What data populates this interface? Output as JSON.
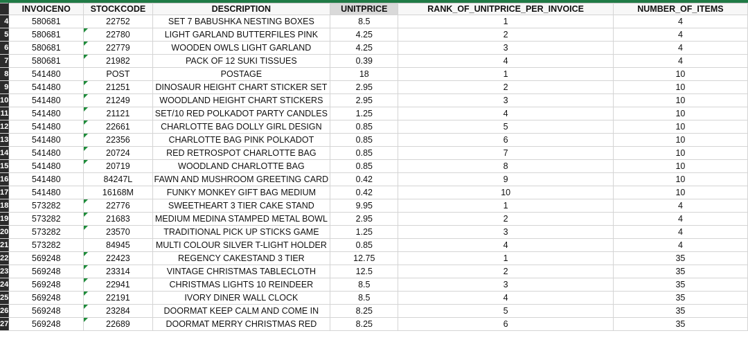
{
  "headers": [
    "INVOICENO",
    "STOCKCODE",
    "DESCRIPTION",
    "UNITPRICE",
    "RANK_OF_UNITPRICE_PER_INVOICE",
    "NUMBER_OF_ITEMS"
  ],
  "rows": [
    {
      "rownum": "4",
      "invoice": "580681",
      "stock": "22752",
      "desc": "SET 7 BABUSHKA NESTING BOXES",
      "price": "8.5",
      "rank": "1",
      "items": "4",
      "flag": false
    },
    {
      "rownum": "5",
      "invoice": "580681",
      "stock": "22780",
      "desc": "LIGHT GARLAND BUTTERFILES PINK",
      "price": "4.25",
      "rank": "2",
      "items": "4",
      "flag": true
    },
    {
      "rownum": "6",
      "invoice": "580681",
      "stock": "22779",
      "desc": "WOODEN OWLS LIGHT GARLAND",
      "price": "4.25",
      "rank": "3",
      "items": "4",
      "flag": true
    },
    {
      "rownum": "7",
      "invoice": "580681",
      "stock": "21982",
      "desc": "PACK OF 12 SUKI TISSUES",
      "price": "0.39",
      "rank": "4",
      "items": "4",
      "flag": true
    },
    {
      "rownum": "8",
      "invoice": "541480",
      "stock": "POST",
      "desc": "POSTAGE",
      "price": "18",
      "rank": "1",
      "items": "10",
      "flag": false
    },
    {
      "rownum": "9",
      "invoice": "541480",
      "stock": "21251",
      "desc": "DINOSAUR HEIGHT CHART STICKER SET",
      "price": "2.95",
      "rank": "2",
      "items": "10",
      "flag": true
    },
    {
      "rownum": "10",
      "invoice": "541480",
      "stock": "21249",
      "desc": "WOODLAND HEIGHT CHART STICKERS",
      "price": "2.95",
      "rank": "3",
      "items": "10",
      "flag": true
    },
    {
      "rownum": "11",
      "invoice": "541480",
      "stock": "21121",
      "desc": "SET/10 RED POLKADOT PARTY CANDLES",
      "price": "1.25",
      "rank": "4",
      "items": "10",
      "flag": true
    },
    {
      "rownum": "12",
      "invoice": "541480",
      "stock": "22661",
      "desc": "CHARLOTTE BAG DOLLY GIRL DESIGN",
      "price": "0.85",
      "rank": "5",
      "items": "10",
      "flag": true
    },
    {
      "rownum": "13",
      "invoice": "541480",
      "stock": "22356",
      "desc": "CHARLOTTE BAG PINK POLKADOT",
      "price": "0.85",
      "rank": "6",
      "items": "10",
      "flag": true
    },
    {
      "rownum": "14",
      "invoice": "541480",
      "stock": "20724",
      "desc": "RED RETROSPOT CHARLOTTE BAG",
      "price": "0.85",
      "rank": "7",
      "items": "10",
      "flag": true
    },
    {
      "rownum": "15",
      "invoice": "541480",
      "stock": "20719",
      "desc": "WOODLAND CHARLOTTE BAG",
      "price": "0.85",
      "rank": "8",
      "items": "10",
      "flag": true
    },
    {
      "rownum": "16",
      "invoice": "541480",
      "stock": "84247L",
      "desc": "FAWN AND MUSHROOM GREETING CARD",
      "price": "0.42",
      "rank": "9",
      "items": "10",
      "flag": false
    },
    {
      "rownum": "17",
      "invoice": "541480",
      "stock": "16168M",
      "desc": "FUNKY MONKEY GIFT BAG MEDIUM",
      "price": "0.42",
      "rank": "10",
      "items": "10",
      "flag": false
    },
    {
      "rownum": "18",
      "invoice": "573282",
      "stock": "22776",
      "desc": "SWEETHEART 3 TIER CAKE STAND",
      "price": "9.95",
      "rank": "1",
      "items": "4",
      "flag": true
    },
    {
      "rownum": "19",
      "invoice": "573282",
      "stock": "21683",
      "desc": "MEDIUM MEDINA STAMPED METAL BOWL",
      "price": "2.95",
      "rank": "2",
      "items": "4",
      "flag": true
    },
    {
      "rownum": "20",
      "invoice": "573282",
      "stock": "23570",
      "desc": "TRADITIONAL PICK UP STICKS GAME",
      "price": "1.25",
      "rank": "3",
      "items": "4",
      "flag": true
    },
    {
      "rownum": "21",
      "invoice": "573282",
      "stock": "84945",
      "desc": "MULTI COLOUR SILVER T-LIGHT HOLDER",
      "price": "0.85",
      "rank": "4",
      "items": "4",
      "flag": false
    },
    {
      "rownum": "22",
      "invoice": "569248",
      "stock": "22423",
      "desc": "REGENCY CAKESTAND 3 TIER",
      "price": "12.75",
      "rank": "1",
      "items": "35",
      "flag": true
    },
    {
      "rownum": "23",
      "invoice": "569248",
      "stock": "23314",
      "desc": "VINTAGE CHRISTMAS TABLECLOTH",
      "price": "12.5",
      "rank": "2",
      "items": "35",
      "flag": true
    },
    {
      "rownum": "24",
      "invoice": "569248",
      "stock": "22941",
      "desc": "CHRISTMAS LIGHTS 10 REINDEER",
      "price": "8.5",
      "rank": "3",
      "items": "35",
      "flag": true
    },
    {
      "rownum": "25",
      "invoice": "569248",
      "stock": "22191",
      "desc": "IVORY DINER WALL CLOCK",
      "price": "8.5",
      "rank": "4",
      "items": "35",
      "flag": true
    },
    {
      "rownum": "26",
      "invoice": "569248",
      "stock": "23284",
      "desc": "DOORMAT KEEP CALM AND COME IN",
      "price": "8.25",
      "rank": "5",
      "items": "35",
      "flag": true
    },
    {
      "rownum": "27",
      "invoice": "569248",
      "stock": "22689",
      "desc": "DOORMAT MERRY CHRISTMAS RED",
      "price": "8.25",
      "rank": "6",
      "items": "35",
      "flag": true
    }
  ]
}
